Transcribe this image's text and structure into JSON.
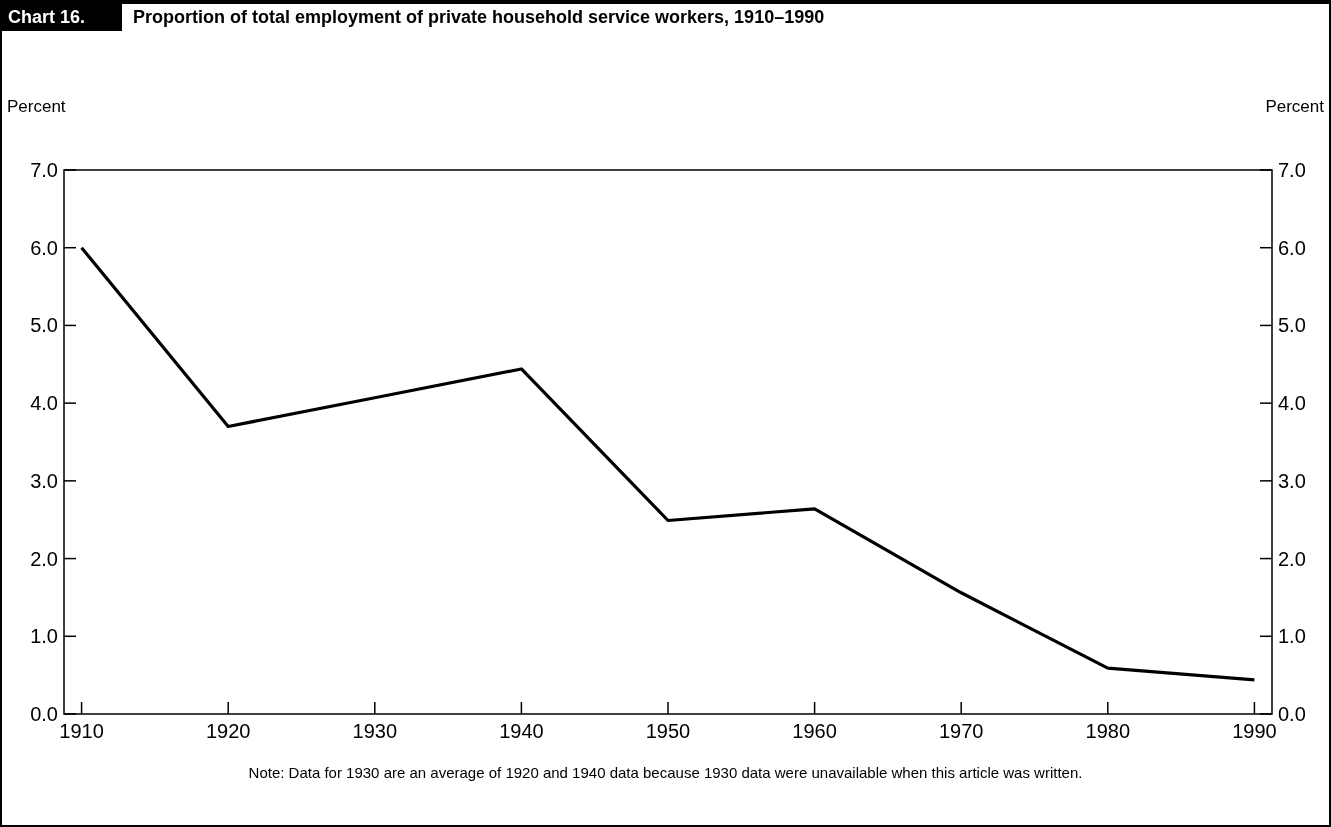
{
  "chart_data": {
    "type": "line",
    "title": "Proportion of total employment of private household service workers, 1910–1990",
    "annotations": [
      "Chart 16.",
      "Note: Data for 1930 are an average of 1920 and 1940 data because 1930 data were unavailable when this article was written."
    ],
    "ylabel": "Percent",
    "y2label": "Percent",
    "x": [
      1910,
      1920,
      1930,
      1940,
      1950,
      1960,
      1970,
      1980,
      1990
    ],
    "series": [
      {
        "color": "#000000",
        "values": [
          6.0,
          3.7,
          4.07,
          4.44,
          2.49,
          2.64,
          1.56,
          0.59,
          0.44
        ]
      }
    ],
    "xlim": [
      1908.8,
      1991.2
    ],
    "xticks": [
      1910,
      1920,
      1930,
      1940,
      1950,
      1960,
      1970,
      1980,
      1990
    ],
    "ylim": [
      0,
      7
    ],
    "yticks": [
      {
        "value": 0,
        "label": "0.0"
      },
      {
        "value": 1,
        "label": "1.0"
      },
      {
        "value": 2,
        "label": "2.0"
      },
      {
        "value": 3,
        "label": "3.0"
      },
      {
        "value": 4,
        "label": "4.0"
      },
      {
        "value": 5,
        "label": "5.0"
      },
      {
        "value": 6,
        "label": "6.0"
      },
      {
        "value": 7,
        "label": "7.0"
      }
    ],
    "y2lim": [
      0,
      7
    ],
    "y2ticks": [
      {
        "value": 0,
        "label": "0.0"
      },
      {
        "value": 1,
        "label": "1.0"
      },
      {
        "value": 2,
        "label": "2.0"
      },
      {
        "value": 3,
        "label": "3.0"
      },
      {
        "value": 4,
        "label": "4.0"
      },
      {
        "value": 5,
        "label": "5.0"
      },
      {
        "value": 6,
        "label": "6.0"
      },
      {
        "value": 7,
        "label": "7.0"
      }
    ],
    "grid": false,
    "marker": "none",
    "line_style": "solid"
  }
}
